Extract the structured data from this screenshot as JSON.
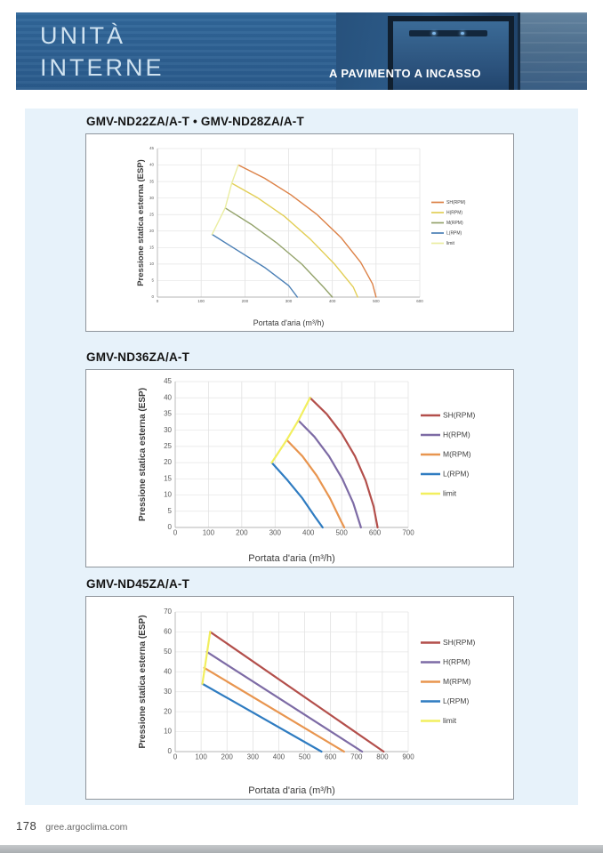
{
  "header": {
    "title_line1": "UNITÀ",
    "title_line2": "INTERNE",
    "right_label": "A PAVIMENTO A INCASSO"
  },
  "sections": [
    {
      "title": "GMV-ND22ZA/A-T • GMV-ND28ZA/A-T"
    },
    {
      "title": "GMV-ND36ZA/A-T"
    },
    {
      "title": "GMV-ND45ZA/A-T"
    }
  ],
  "footer": {
    "page_number": "178",
    "site": "gree.argoclima.com"
  },
  "chart_data": [
    {
      "type": "line",
      "title": "GMV-ND22ZA/A-T • GMV-ND28ZA/A-T",
      "xlabel": "Portata d'aria (m³/h)",
      "ylabel": "Pressione statica esterna (ESP)",
      "xlim": [
        0,
        600
      ],
      "xstep": 100,
      "ylim": [
        0,
        45
      ],
      "ystep": 5,
      "grid": true,
      "legend_position": "right",
      "series": [
        {
          "name": "SH(RPM)",
          "color": "#DC8146",
          "points": [
            [
              185,
              40
            ],
            [
              245,
              36
            ],
            [
              305,
              31
            ],
            [
              365,
              25
            ],
            [
              420,
              18
            ],
            [
              465,
              10.5
            ],
            [
              492,
              4
            ],
            [
              500,
              0
            ]
          ]
        },
        {
          "name": "H(RPM)",
          "color": "#E2CE56",
          "points": [
            [
              170,
              34.5
            ],
            [
              230,
              30
            ],
            [
              290,
              24.5
            ],
            [
              350,
              17.5
            ],
            [
              405,
              10
            ],
            [
              448,
              3
            ],
            [
              458,
              0
            ]
          ]
        },
        {
          "name": "M(RPM)",
          "color": "#94A36C",
          "points": [
            [
              155,
              27
            ],
            [
              215,
              22
            ],
            [
              272,
              16.5
            ],
            [
              330,
              10
            ],
            [
              380,
              3
            ],
            [
              400,
              0
            ]
          ]
        },
        {
          "name": "L(RPM)",
          "color": "#4A7FB5",
          "points": [
            [
              125,
              19
            ],
            [
              185,
              14
            ],
            [
              245,
              9
            ],
            [
              300,
              3.5
            ],
            [
              320,
              0
            ]
          ]
        },
        {
          "name": "limit",
          "color": "#EAEDA0",
          "points": [
            [
              125,
              19
            ],
            [
              155,
              27
            ],
            [
              170,
              34.5
            ],
            [
              185,
              40
            ]
          ]
        }
      ]
    },
    {
      "type": "line",
      "title": "GMV-ND36ZA/A-T",
      "xlabel": "Portata d'aria (m³/h)",
      "ylabel": "Pressione statica esterna (ESP)",
      "xlim": [
        0,
        700
      ],
      "xstep": 100,
      "ylim": [
        0,
        45
      ],
      "ystep": 5,
      "grid": true,
      "legend_position": "right",
      "series": [
        {
          "name": "SH(RPM)",
          "color": "#B34F4B",
          "points": [
            [
              405,
              40
            ],
            [
              455,
              35
            ],
            [
              500,
              29
            ],
            [
              540,
              22
            ],
            [
              572,
              14.5
            ],
            [
              596,
              6.5
            ],
            [
              608,
              0
            ]
          ]
        },
        {
          "name": "H(RPM)",
          "color": "#7D6BA5",
          "points": [
            [
              370,
              33
            ],
            [
              418,
              28
            ],
            [
              462,
              22
            ],
            [
              502,
              15
            ],
            [
              535,
              7.5
            ],
            [
              558,
              0
            ]
          ]
        },
        {
          "name": "M(RPM)",
          "color": "#E8954F",
          "points": [
            [
              335,
              27
            ],
            [
              382,
              22
            ],
            [
              425,
              16
            ],
            [
              465,
              9
            ],
            [
              498,
              2
            ],
            [
              508,
              0
            ]
          ]
        },
        {
          "name": "L(RPM)",
          "color": "#2F7CC1",
          "points": [
            [
              290,
              20
            ],
            [
              338,
              14.5
            ],
            [
              382,
              9
            ],
            [
              422,
              3
            ],
            [
              443,
              0
            ]
          ]
        },
        {
          "name": "limit",
          "color": "#F2EF5E",
          "points": [
            [
              290,
              20
            ],
            [
              335,
              27
            ],
            [
              370,
              33
            ],
            [
              405,
              40
            ]
          ]
        }
      ]
    },
    {
      "type": "line",
      "title": "GMV-ND45ZA/A-T",
      "xlabel": "Portata d'aria (m³/h)",
      "ylabel": "Pressione statica esterna (ESP)",
      "xlim": [
        0,
        900
      ],
      "xstep": 100,
      "ylim": [
        0,
        70
      ],
      "ystep": 10,
      "grid": true,
      "legend_position": "right",
      "series": [
        {
          "name": "SH(RPM)",
          "color": "#B34F4B",
          "points": [
            [
              135,
              60
            ],
            [
              805,
              0
            ]
          ]
        },
        {
          "name": "H(RPM)",
          "color": "#7D6BA5",
          "points": [
            [
              122,
              50
            ],
            [
              722,
              0
            ]
          ]
        },
        {
          "name": "M(RPM)",
          "color": "#E8954F",
          "points": [
            [
              112,
              42
            ],
            [
              652,
              0
            ]
          ]
        },
        {
          "name": "L(RPM)",
          "color": "#2F7CC1",
          "points": [
            [
              105,
              34
            ],
            [
              565,
              0
            ]
          ]
        },
        {
          "name": "limit",
          "color": "#F2EF5E",
          "points": [
            [
              105,
              34
            ],
            [
              135,
              60
            ]
          ]
        }
      ]
    }
  ]
}
